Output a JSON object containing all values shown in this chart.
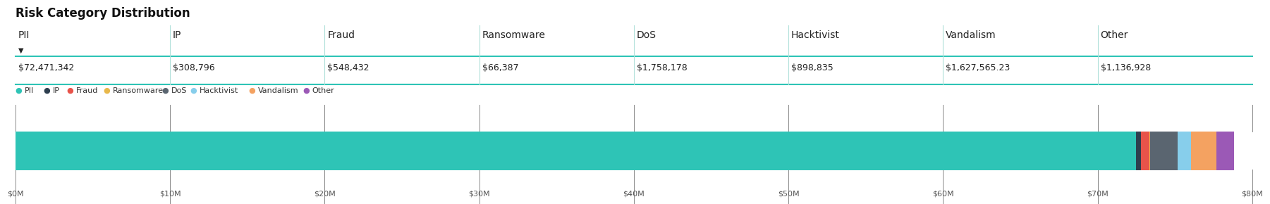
{
  "title": "Risk Category Distribution",
  "categories": [
    "PII",
    "IP",
    "Fraud",
    "Ransomware",
    "DoS",
    "Hacktivist",
    "Vandalism",
    "Other"
  ],
  "values": [
    72471342,
    308796,
    548432,
    66387,
    1758178,
    898835,
    1627565.23,
    1136928
  ],
  "value_labels": [
    "$72,471,342",
    "$308,796",
    "$548,432",
    "$66,387",
    "$1,758,178",
    "$898,835",
    "$1,627,565.23",
    "$1,136,928"
  ],
  "bar_colors_map": {
    "PII": "#2ec4b6",
    "IP": "#2d3e4e",
    "Fraud": "#e8534a",
    "Ransomware": "#e8b84b",
    "DoS": "#5a6570",
    "Hacktivist": "#87ceeb",
    "Vandalism": "#f4a261",
    "Other": "#9b59b6"
  },
  "legend_colors": [
    "#2ec4b6",
    "#2d3e4e",
    "#e8534a",
    "#e8b84b",
    "#5a6570",
    "#87ceeb",
    "#f4a261",
    "#9b59b6"
  ],
  "legend_labels": [
    "PII",
    "IP",
    "Fraud",
    "Ransomware",
    "DoS",
    "Hacktivist",
    "Vandalism",
    "Other"
  ],
  "teal_color": "#2ec4b6",
  "sep_color": "#b0e0da",
  "tick_color": "#888888",
  "text_color": "#222222",
  "label_color": "#555555",
  "xmax": 80000000,
  "xlabel_ticks": [
    0,
    10000000,
    20000000,
    30000000,
    40000000,
    50000000,
    60000000,
    70000000,
    80000000
  ],
  "xlabel_labels": [
    "$0M",
    "$10M",
    "$20M",
    "$30M",
    "$40M",
    "$50M",
    "$60M",
    "$70M",
    "$80M"
  ],
  "background_color": "#ffffff",
  "sort_marker": "▼"
}
